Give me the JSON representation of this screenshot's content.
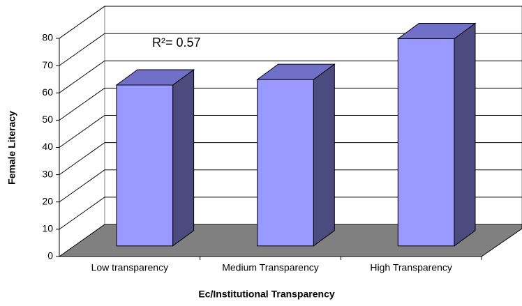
{
  "chart_data": {
    "type": "bar3d",
    "categories": [
      "Low  transparency",
      "Medium Transparency",
      "High Transparency"
    ],
    "values": [
      59,
      61,
      76
    ],
    "color": "#9999ff",
    "ylim": [
      0,
      80
    ],
    "yticks": [
      0,
      10,
      20,
      30,
      40,
      50,
      60,
      70,
      80
    ],
    "grid": true,
    "x_label": "Ec/Institutional Transparency",
    "y_label": "Female Literacy",
    "annotation": "R²= 0.57"
  }
}
